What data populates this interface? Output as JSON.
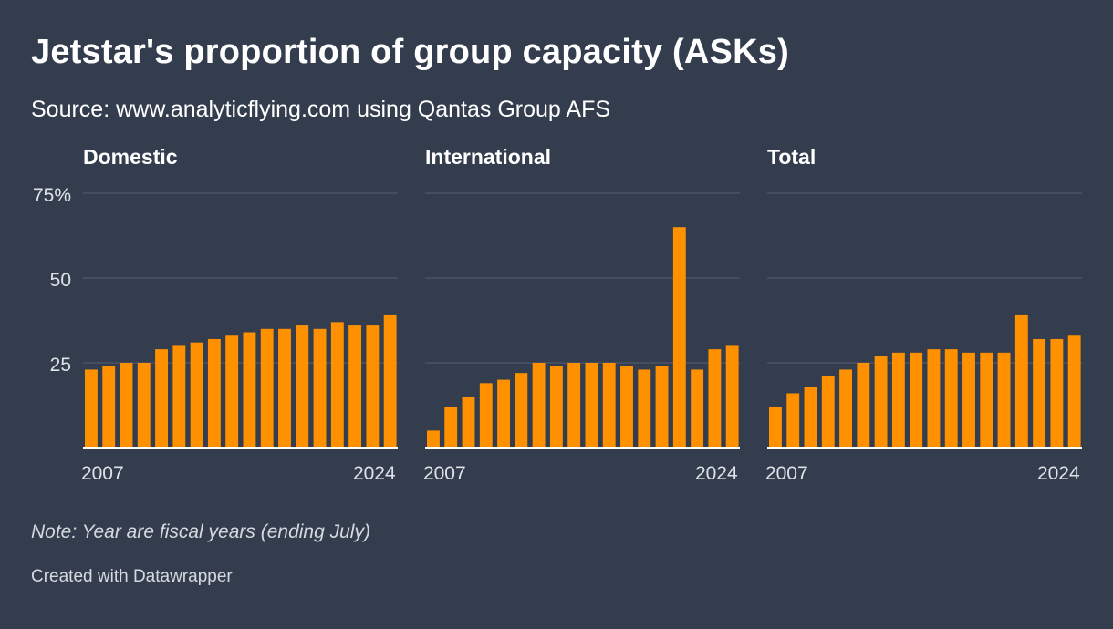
{
  "header": {
    "title": "Jetstar's proportion of group capacity (ASKs)",
    "subtitle": "Source: www.analyticflying.com using Qantas Group AFS"
  },
  "footer": {
    "note": "Note: Year are fiscal years (ending July)",
    "credit": "Created with Datawrapper"
  },
  "colors": {
    "background": "#333d4e",
    "bar": "#ff9100",
    "grid": "#4f5a6b",
    "baseline": "#ffffff",
    "tick_text": "#dfe3e8"
  },
  "chart_data": [
    {
      "type": "bar",
      "title": "Domestic",
      "x": [
        2007,
        2008,
        2009,
        2010,
        2011,
        2012,
        2013,
        2014,
        2015,
        2016,
        2017,
        2018,
        2019,
        2020,
        2021,
        2022,
        2023,
        2024
      ],
      "values": [
        23,
        24,
        25,
        25,
        29,
        30,
        31,
        32,
        33,
        34,
        35,
        35,
        36,
        35,
        37,
        36,
        36,
        39
      ],
      "x_tick_labels": [
        "2007",
        "2024"
      ],
      "y_ticks": [
        25,
        50,
        75
      ],
      "y_tick_labels": [
        "25",
        "50",
        "75%"
      ],
      "ylim": [
        0,
        75
      ],
      "grid": true
    },
    {
      "type": "bar",
      "title": "International",
      "x": [
        2007,
        2008,
        2009,
        2010,
        2011,
        2012,
        2013,
        2014,
        2015,
        2016,
        2017,
        2018,
        2019,
        2020,
        2021,
        2022,
        2023,
        2024
      ],
      "values": [
        5,
        12,
        15,
        19,
        20,
        22,
        25,
        24,
        25,
        25,
        25,
        24,
        23,
        24,
        65,
        23,
        29,
        30
      ],
      "x_tick_labels": [
        "2007",
        "2024"
      ],
      "ylim": [
        0,
        75
      ],
      "grid": true
    },
    {
      "type": "bar",
      "title": "Total",
      "x": [
        2007,
        2008,
        2009,
        2010,
        2011,
        2012,
        2013,
        2014,
        2015,
        2016,
        2017,
        2018,
        2019,
        2020,
        2021,
        2022,
        2023,
        2024
      ],
      "values": [
        12,
        16,
        18,
        21,
        23,
        25,
        27,
        28,
        28,
        29,
        29,
        28,
        28,
        28,
        39,
        32,
        32,
        33
      ],
      "x_tick_labels": [
        "2007",
        "2024"
      ],
      "ylim": [
        0,
        75
      ],
      "grid": true
    }
  ]
}
